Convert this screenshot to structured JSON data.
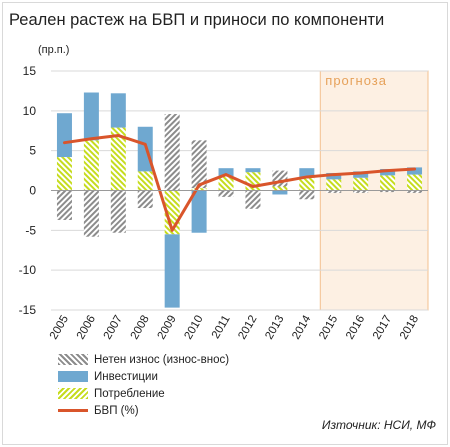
{
  "title": "Реален растеж на БВП и приноси по компоненти",
  "unit_label": "(пр.п.)",
  "forecast_label": "прогноза",
  "source": "Източник: НСИ, МФ",
  "legend": [
    {
      "key": "net",
      "label": "Нетен износ (износ-внос)"
    },
    {
      "key": "inv",
      "label": "Инвестиции"
    },
    {
      "key": "cons",
      "label": "Потребление"
    },
    {
      "key": "gdp",
      "label": "БВП (%)"
    }
  ],
  "colors": {
    "investment": "#6fa8d0",
    "consumption": "#c6dc1e",
    "net_exports": "#8c8c8c",
    "gdp": "#d9552b",
    "forecast_fill": "#fdf0e3",
    "forecast_border": "#f3c08f",
    "forecast_text": "#e6a15a"
  },
  "chart_data": {
    "type": "bar",
    "stacked": true,
    "categories": [
      "2005",
      "2006",
      "2007",
      "2008",
      "2009",
      "2010",
      "2011",
      "2012",
      "2013",
      "2014",
      "2015",
      "2016",
      "2017",
      "2018"
    ],
    "ylim": [
      -15,
      15
    ],
    "yticks": [
      15,
      10,
      5,
      0,
      -5,
      -10,
      -15
    ],
    "grid": true,
    "forecast_from": "2015",
    "series": [
      {
        "name": "Потребление",
        "key": "cons",
        "values": [
          4.2,
          6.3,
          7.9,
          2.4,
          -5.5,
          0.3,
          1.8,
          2.3,
          0.5,
          1.7,
          1.4,
          1.6,
          1.9,
          2.0
        ]
      },
      {
        "name": "Инвестиции",
        "key": "inv",
        "values": [
          5.5,
          6.0,
          4.3,
          5.6,
          -9.2,
          -5.3,
          1.0,
          0.5,
          -0.5,
          1.1,
          0.8,
          0.8,
          0.8,
          0.9
        ]
      },
      {
        "name": "Нетен износ (износ-внос)",
        "key": "net",
        "values": [
          -3.7,
          -5.8,
          -5.3,
          -2.2,
          9.6,
          6.0,
          -0.8,
          -2.3,
          2.0,
          -1.1,
          -0.3,
          -0.3,
          -0.2,
          -0.3
        ]
      }
    ],
    "line": {
      "name": "БВП (%)",
      "key": "gdp",
      "values": [
        6.0,
        6.5,
        6.9,
        5.8,
        -5.0,
        0.7,
        2.0,
        0.5,
        1.1,
        1.7,
        2.0,
        2.2,
        2.5,
        2.7
      ]
    }
  }
}
